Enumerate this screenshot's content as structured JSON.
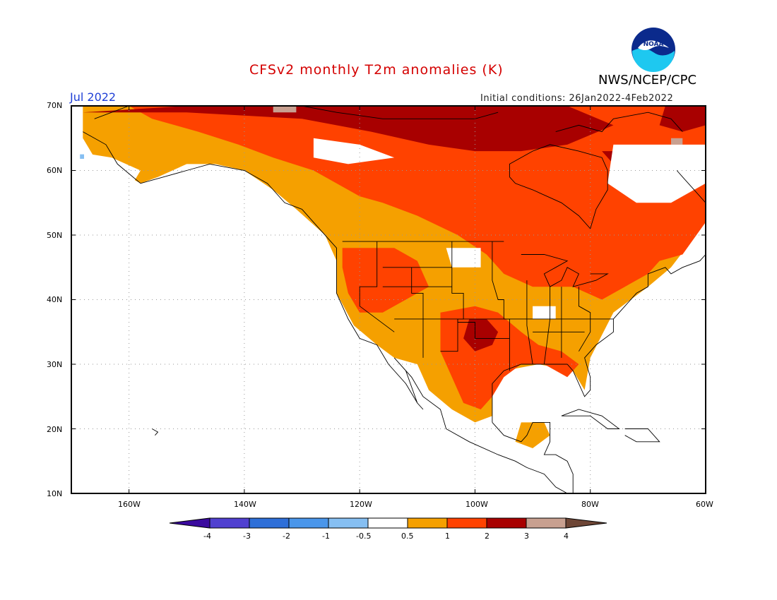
{
  "title": "CFSv2 monthly T2m anomalies (K)",
  "agency": "NWS/NCEP/CPC",
  "logo_text": "NOAA",
  "month_label": "Jul 2022",
  "initial_conditions": "Initial conditions: 26Jan2022-4Feb2022",
  "lat_labels": [
    "70N",
    "60N",
    "50N",
    "40N",
    "30N",
    "20N",
    "10N"
  ],
  "lon_labels": [
    "160W",
    "140W",
    "120W",
    "100W",
    "80W",
    "60W"
  ],
  "colorbar": {
    "labels": [
      "-4",
      "-3",
      "-2",
      "-1",
      "-0.5",
      "0.5",
      "1",
      "2",
      "3",
      "4"
    ],
    "colors": [
      "#3a0a9e",
      "#5040d0",
      "#2e6fd8",
      "#4a96ea",
      "#86bff2",
      "#ffffff",
      "#f5a000",
      "#ff4200",
      "#a80000",
      "#c8a090",
      "#6e4636"
    ]
  },
  "anomaly_colors": {
    "above_0_5": "#f5a000",
    "above_1": "#ff4200",
    "above_2": "#a80000",
    "above_3": "#c8a090",
    "below_minus_0_5": "#86bff2"
  }
}
